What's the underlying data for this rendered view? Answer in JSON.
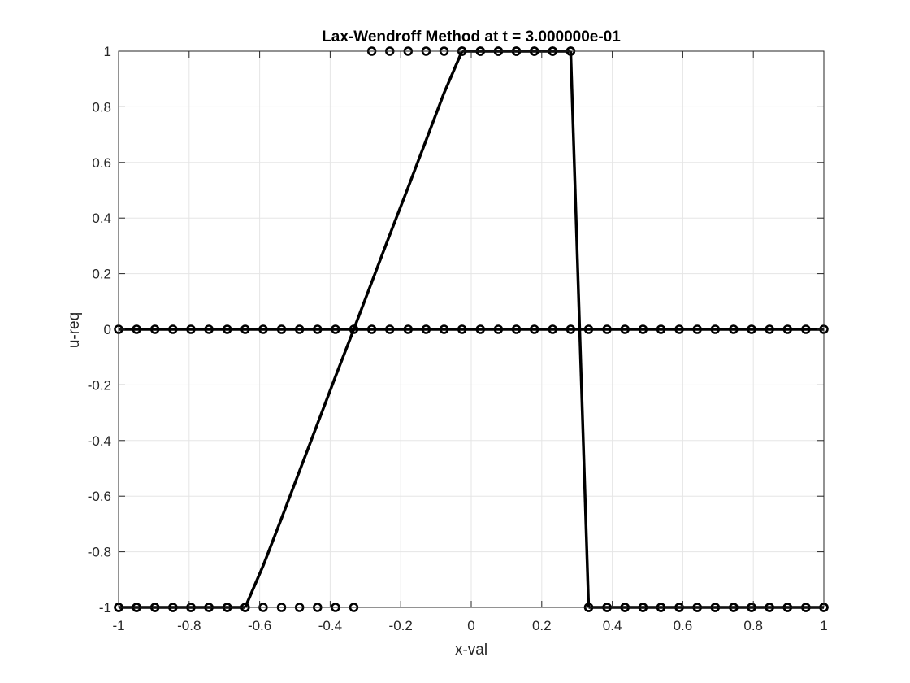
{
  "chart_data": {
    "type": "line",
    "title": "Lax-Wendroff Method at t = 3.000000e-01",
    "xlabel": "x-val",
    "ylabel": "u-req",
    "xlim": [
      -1,
      1
    ],
    "ylim": [
      -1,
      1
    ],
    "grid": true,
    "xticks": [
      -1,
      -0.8,
      -0.6,
      -0.4,
      -0.2,
      0,
      0.2,
      0.4,
      0.6,
      0.8,
      1
    ],
    "xtick_labels": [
      "-1",
      "-0.8",
      "-0.6",
      "-0.4",
      "-0.2",
      "0",
      "0.2",
      "0.4",
      "0.6",
      "0.8",
      "1"
    ],
    "yticks": [
      -1,
      -0.8,
      -0.6,
      -0.4,
      -0.2,
      0,
      0.2,
      0.4,
      0.6,
      0.8,
      1
    ],
    "ytick_labels": [
      "-1",
      "-0.8",
      "-0.6",
      "-0.4",
      "-0.2",
      "0",
      "0.2",
      "0.4",
      "0.6",
      "0.8",
      "1"
    ],
    "colors": {
      "line": "#000000",
      "grid": "#e5e5e5",
      "axis": "#262626"
    },
    "series": [
      {
        "style": "markers",
        "marker": "circle",
        "x": [
          -1,
          -0.949,
          -0.897,
          -0.846,
          -0.795,
          -0.744,
          -0.692,
          -0.641,
          -0.59,
          -0.538,
          -0.487,
          -0.436,
          -0.385,
          -0.333
        ],
        "y": [
          -1,
          -1,
          -1,
          -1,
          -1,
          -1,
          -1,
          -1,
          -1,
          -1,
          -1,
          -1,
          -1,
          -1
        ]
      },
      {
        "style": "markers",
        "marker": "circle",
        "x": [
          -0.282,
          -0.231,
          -0.179,
          -0.128,
          -0.077,
          -0.026,
          0.026,
          0.077,
          0.128,
          0.179,
          0.231,
          0.282
        ],
        "y": [
          1,
          1,
          1,
          1,
          1,
          1,
          1,
          1,
          1,
          1,
          1,
          1
        ]
      },
      {
        "style": "markers",
        "marker": "circle",
        "x": [
          0.333,
          0.385,
          0.436,
          0.487,
          0.538,
          0.59,
          0.641,
          0.692,
          0.744,
          0.795,
          0.846,
          0.897,
          0.949,
          1
        ],
        "y": [
          -1,
          -1,
          -1,
          -1,
          -1,
          -1,
          -1,
          -1,
          -1,
          -1,
          -1,
          -1,
          -1,
          -1
        ]
      },
      {
        "style": "line-markers",
        "marker": "circle",
        "x": [
          -1,
          -0.949,
          -0.897,
          -0.846,
          -0.795,
          -0.744,
          -0.692,
          -0.641,
          -0.59,
          -0.538,
          -0.487,
          -0.436,
          -0.385,
          -0.333,
          -0.282,
          -0.231,
          -0.179,
          -0.128,
          -0.077,
          -0.026,
          0.026,
          0.077,
          0.128,
          0.179,
          0.231,
          0.282,
          0.333,
          0.385,
          0.436,
          0.487,
          0.538,
          0.59,
          0.641,
          0.692,
          0.744,
          0.795,
          0.846,
          0.897,
          0.949,
          1
        ],
        "y": [
          0,
          0,
          0,
          0,
          0,
          0,
          0,
          0,
          0,
          0,
          0,
          0,
          0,
          0,
          0,
          0,
          0,
          0,
          0,
          0,
          0,
          0,
          0,
          0,
          0,
          0,
          0,
          0,
          0,
          0,
          0,
          0,
          0,
          0,
          0,
          0,
          0,
          0,
          0,
          0
        ]
      },
      {
        "style": "line-markers",
        "marker": "circle",
        "x": [
          -1,
          -0.949,
          -0.897,
          -0.846,
          -0.795,
          -0.744,
          -0.692,
          -0.641
        ],
        "y": [
          -1,
          -1,
          -1,
          -1,
          -1,
          -1,
          -1,
          -1
        ]
      },
      {
        "style": "line",
        "x": [
          -0.641,
          -0.59,
          -0.538,
          -0.487,
          -0.436,
          -0.385,
          -0.333,
          -0.282,
          -0.231,
          -0.179,
          -0.128,
          -0.077,
          -0.026
        ],
        "y": [
          -1,
          -0.85,
          -0.68,
          -0.51,
          -0.34,
          -0.17,
          0,
          0.17,
          0.34,
          0.51,
          0.68,
          0.85,
          1
        ]
      },
      {
        "style": "line-markers",
        "marker": "circle",
        "x": [
          -0.026,
          0.026,
          0.077,
          0.128,
          0.179,
          0.231,
          0.282
        ],
        "y": [
          1,
          1,
          1,
          1,
          1,
          1,
          1
        ]
      },
      {
        "style": "line",
        "x": [
          0.282,
          0.333
        ],
        "y": [
          1,
          -1
        ]
      },
      {
        "style": "line-markers",
        "marker": "circle",
        "x": [
          0.333,
          0.385,
          0.436,
          0.487,
          0.538,
          0.59,
          0.641,
          0.692,
          0.744,
          0.795,
          0.846,
          0.897,
          0.949,
          1
        ],
        "y": [
          -1,
          -1,
          -1,
          -1,
          -1,
          -1,
          -1,
          -1,
          -1,
          -1,
          -1,
          -1,
          -1,
          -1
        ]
      }
    ]
  }
}
